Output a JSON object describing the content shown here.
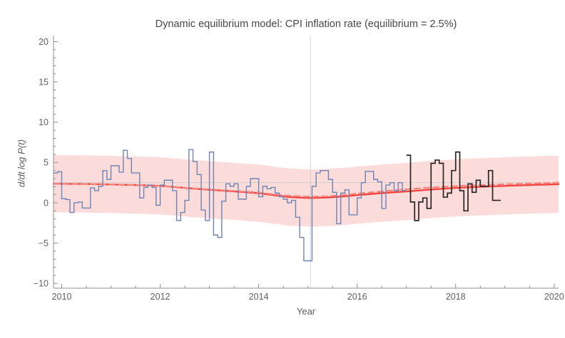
{
  "chart_data": {
    "type": "line",
    "title": "Dynamic equilibrium model: CPI inflation rate (equilibrium = 2.5%)",
    "xlabel": "Year",
    "ylabel": "d/dt log P(t)",
    "equilibrium_value": 2.5,
    "xlim": [
      2009.833,
      2020.09
    ],
    "ylim": [
      -10.6,
      20.75
    ],
    "xticks": {
      "values": [
        2010,
        2012,
        2014,
        2016,
        2018,
        2020
      ],
      "labels": [
        "2010",
        "2012",
        "2014",
        "2016",
        "2018",
        "2020"
      ]
    },
    "yticks": {
      "values": [
        -10,
        -5,
        0,
        5,
        10,
        15,
        20
      ],
      "labels": [
        "−10",
        "−5",
        "0",
        "5",
        "10",
        "15",
        "20"
      ]
    },
    "xminor_step": 0.5,
    "yminor_step": 1,
    "gridlines": {
      "x": [
        2015.05
      ],
      "y": [
        2.5
      ]
    },
    "colors": {
      "grid": "#c9c9c9",
      "axis": "#8f8f8f",
      "tick_label": "#606060",
      "title": "#474747",
      "band": "#fbdcda",
      "model": "#f2453f",
      "model_dashed": "#f9867e",
      "data_old": "#6f84b3",
      "data_new": "#2b2526"
    },
    "series": [
      {
        "name": "confidence-band",
        "type": "band",
        "color": "#fbdcda",
        "x": [
          2009.833,
          2010.5,
          2011,
          2011.5,
          2012,
          2012.5,
          2013,
          2013.5,
          2014,
          2014.3,
          2014.6,
          2014.9,
          2015.1,
          2015.4,
          2015.7,
          2016,
          2016.5,
          2017,
          2017.5,
          2018,
          2018.5,
          2019,
          2019.5,
          2020.09
        ],
        "top": [
          5.9,
          5.88,
          5.83,
          5.75,
          5.65,
          5.4,
          5.17,
          4.97,
          4.75,
          4.5,
          4.27,
          4.17,
          4.15,
          4.2,
          4.33,
          4.5,
          4.75,
          4.95,
          5.2,
          5.4,
          5.53,
          5.65,
          5.75,
          5.85
        ],
        "bottom": [
          -1.2,
          -1.22,
          -1.27,
          -1.35,
          -1.45,
          -1.7,
          -1.93,
          -2.13,
          -2.35,
          -2.6,
          -2.83,
          -2.93,
          -2.95,
          -2.9,
          -2.77,
          -2.6,
          -2.35,
          -2.15,
          -1.9,
          -1.7,
          -1.57,
          -1.45,
          -1.35,
          -1.25
        ]
      },
      {
        "name": "model-path-solid",
        "type": "line",
        "style": "solid",
        "color": "#f2453f",
        "width": 2.4,
        "x": [
          2009.833,
          2010.5,
          2011,
          2011.5,
          2012,
          2012.5,
          2013,
          2013.5,
          2014,
          2014.3,
          2014.6,
          2014.9,
          2015.1,
          2015.4,
          2015.7,
          2016,
          2016.5,
          2017,
          2017.5,
          2018,
          2018.5,
          2019,
          2019.5,
          2020.09
        ],
        "y": [
          2.35,
          2.33,
          2.28,
          2.2,
          2.1,
          1.85,
          1.62,
          1.42,
          1.2,
          0.95,
          0.72,
          0.62,
          0.6,
          0.65,
          0.78,
          0.95,
          1.2,
          1.4,
          1.65,
          1.85,
          1.98,
          2.1,
          2.2,
          2.3
        ]
      },
      {
        "name": "model-path-dashed",
        "type": "line",
        "style": "dashed",
        "color": "#f9867e",
        "width": 2.2,
        "x": [
          2009.833,
          2010.5,
          2011,
          2011.5,
          2012,
          2012.5,
          2013,
          2013.5,
          2014,
          2014.3,
          2014.6,
          2014.9,
          2015.1,
          2015.4,
          2015.7,
          2016,
          2016.5,
          2017,
          2017.5,
          2018,
          2018.5,
          2019,
          2019.5,
          2020.09
        ],
        "y": [
          2.35,
          2.33,
          2.28,
          2.2,
          2.1,
          1.87,
          1.65,
          1.48,
          1.28,
          1.05,
          0.88,
          0.78,
          0.76,
          0.82,
          0.95,
          1.15,
          1.42,
          1.68,
          1.9,
          2.08,
          2.2,
          2.3,
          2.4,
          2.5
        ]
      },
      {
        "name": "cpi-monthly-observed",
        "type": "step",
        "color": "#6f84b3",
        "width": 1.4,
        "x_start": 2009.8333,
        "dx": 0.0833333,
        "values": [
          3.7,
          3.85,
          0.5,
          0.4,
          -1.2,
          0.0,
          0.1,
          -0.65,
          -0.65,
          1.85,
          1.5,
          2.05,
          4.0,
          2.9,
          4.6,
          4.6,
          3.8,
          6.5,
          5.5,
          3.7,
          3.7,
          0.6,
          1.9,
          2.2,
          1.9,
          -0.3,
          2.2,
          2.8,
          2.8,
          1.5,
          -2.2,
          -1.2,
          0.3,
          6.6,
          5.1,
          3.5,
          -0.9,
          -2.2,
          6.3,
          -4.0,
          -4.3,
          0.2,
          2.35,
          2.05,
          2.35,
          0.45,
          0.45,
          2.05,
          3.0,
          3.0,
          0.75,
          2.05,
          1.75,
          1.9,
          1.2,
          0.75,
          0.45,
          0.0,
          0.3,
          -1.8,
          -4.3,
          -7.2,
          -7.2,
          2.05,
          3.7,
          4.0,
          4.0,
          2.9,
          1.3,
          -2.6,
          1.2,
          1.6,
          -1.5,
          -1.5,
          0.6,
          2.5,
          3.9,
          3.9,
          2.9,
          2.6,
          -0.7,
          2.2,
          2.5,
          1.5,
          2.5,
          1.5
        ]
      },
      {
        "name": "cpi-monthly-new-data",
        "type": "step",
        "color": "#2b2526",
        "width": 1.7,
        "x_start": 2017.0,
        "dx": 0.0833333,
        "values": [
          5.9,
          0.1,
          -2.2,
          0.1,
          0.6,
          -0.7,
          4.9,
          5.3,
          4.9,
          0.7,
          1.2,
          4.0,
          6.3,
          1.5,
          -1.0,
          2.35,
          1.3,
          2.8,
          2.05,
          2.05,
          4.0,
          0.3,
          0.3
        ]
      }
    ],
    "legend": "none",
    "grid": "single equilibrium gridlines only"
  }
}
